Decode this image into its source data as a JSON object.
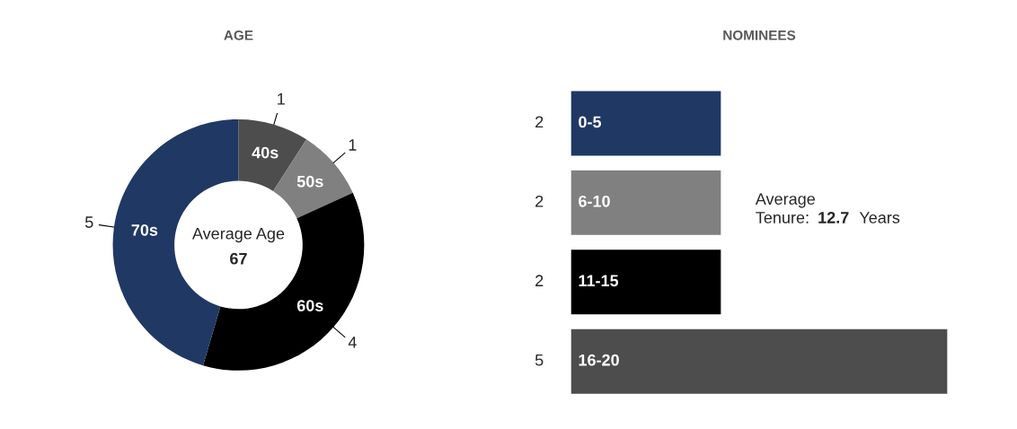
{
  "chart_data": [
    {
      "type": "donut",
      "title": "AGE",
      "categories": [
        "40s",
        "50s",
        "60s",
        "70s"
      ],
      "values": [
        1,
        1,
        4,
        5
      ],
      "colors": [
        "#4d4d4d",
        "#808080",
        "#000000",
        "#203864"
      ],
      "data_labels": true,
      "annotations": [
        "Average Age",
        "67"
      ]
    },
    {
      "type": "bar",
      "orientation": "horizontal",
      "title": "NOMINEES",
      "categories": [
        "0-5",
        "6-10",
        "11-15",
        "16-20"
      ],
      "values": [
        2,
        2,
        2,
        5
      ],
      "colors": [
        "#203864",
        "#808080",
        "#000000",
        "#4d4d4d"
      ],
      "data_labels": true,
      "tick_labels": false,
      "annotations": [
        "Average\nTenure:",
        "12.7",
        "Years"
      ]
    }
  ]
}
